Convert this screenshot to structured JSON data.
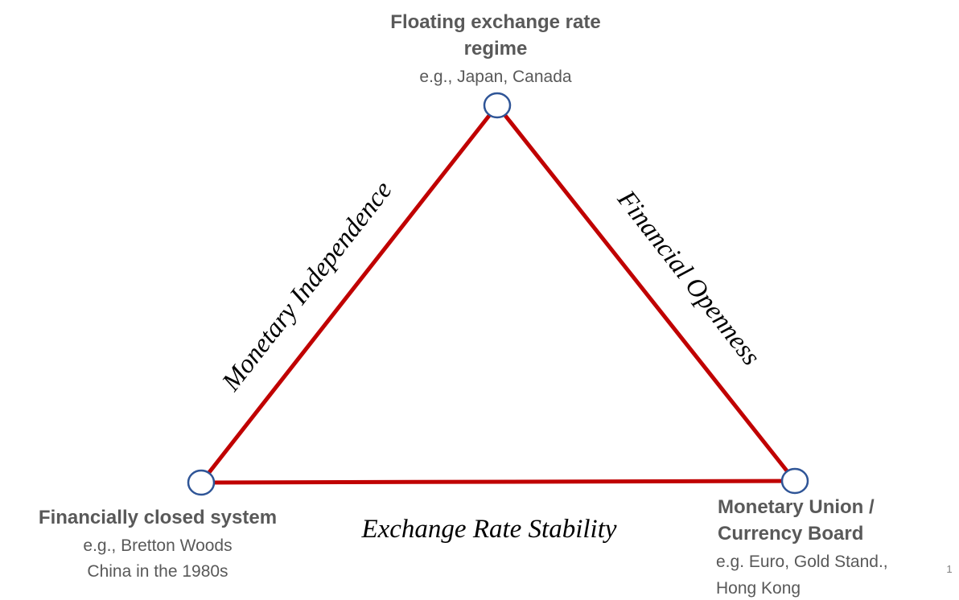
{
  "nodes": [
    {
      "title_lines": [
        "Floating exchange rate",
        "regime"
      ],
      "example_lines": [
        "e.g., Japan, Canada"
      ]
    },
    {
      "title_lines": [
        "Financially closed system"
      ],
      "example_lines": [
        "e.g., Bretton Woods",
        "China in the 1980s"
      ]
    },
    {
      "title_lines": [
        "Monetary Union /",
        "Currency Board"
      ],
      "example_lines": [
        "e.g. Euro, Gold Stand.,",
        "Hong Kong"
      ]
    }
  ],
  "edges": [
    {
      "label": "Monetary Independence"
    },
    {
      "label": "Financial Openness"
    },
    {
      "label": "Exchange Rate Stability"
    }
  ],
  "page_number": "1"
}
